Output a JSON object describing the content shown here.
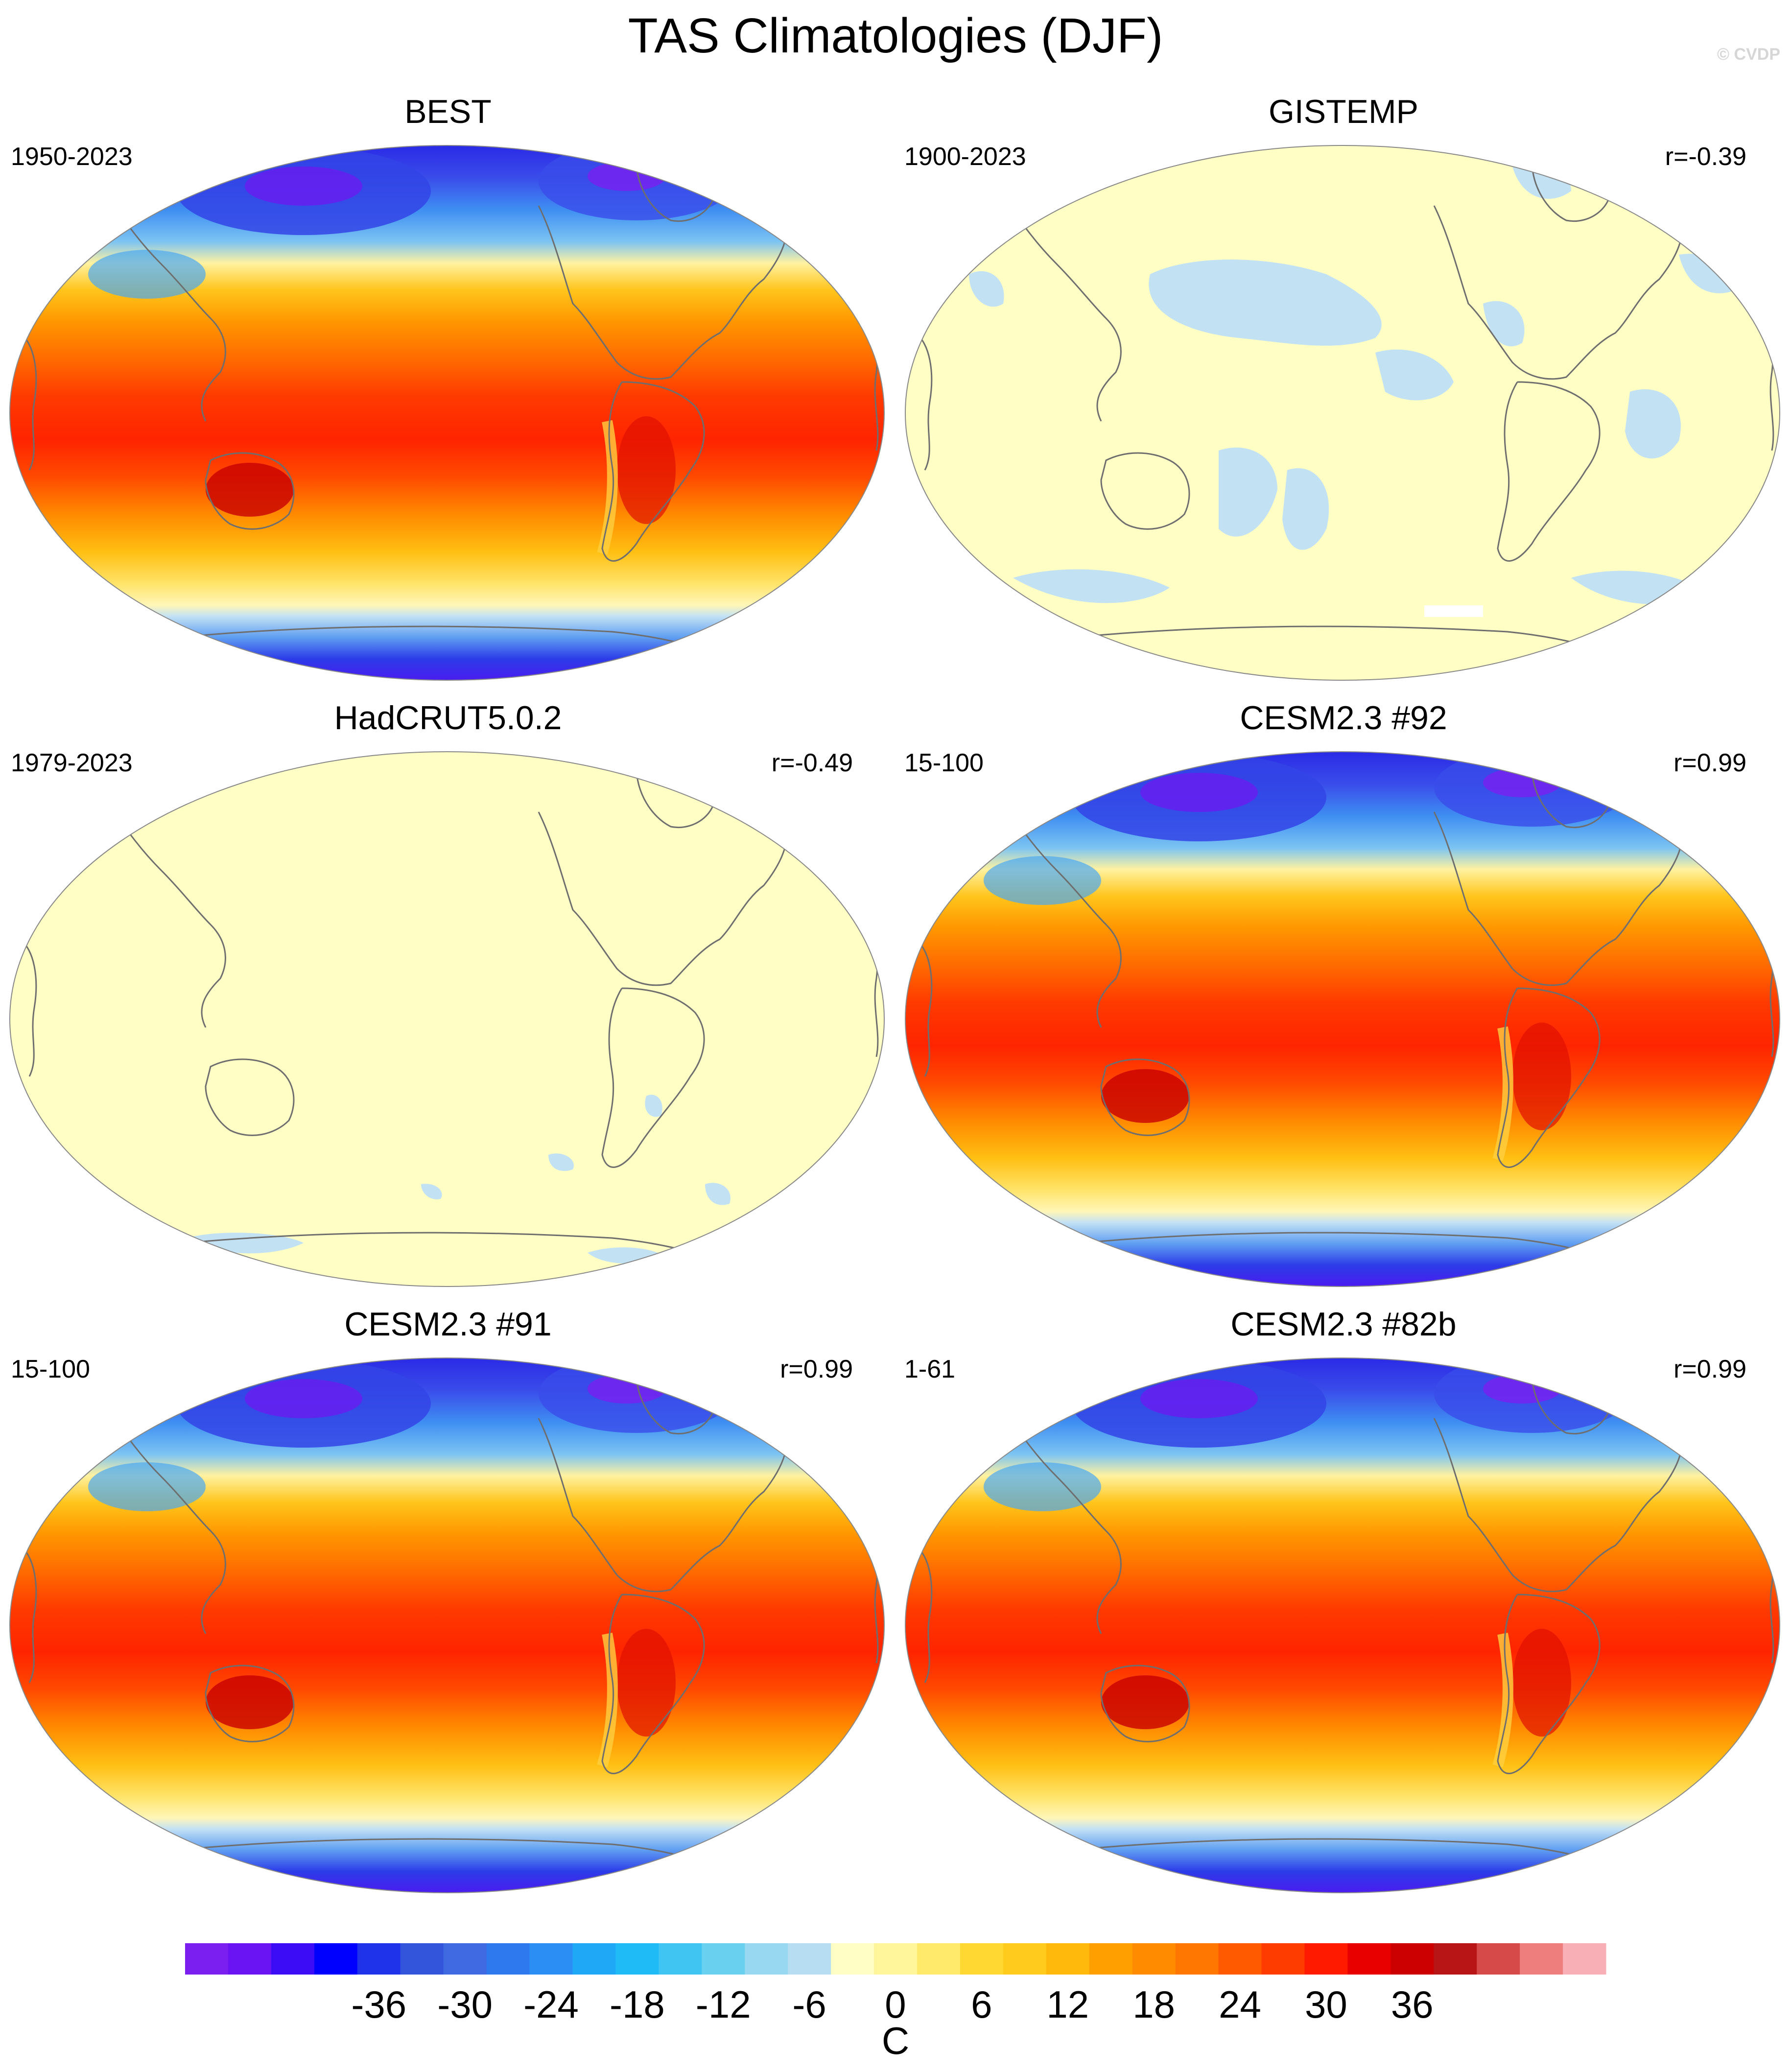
{
  "title": "TAS Climatologies (DJF)",
  "credit": "© CVDP",
  "panels": [
    {
      "name": "BEST",
      "period": "1950-2023",
      "r": "",
      "style": "full"
    },
    {
      "name": "GISTEMP",
      "period": "1900-2023",
      "r": "r=-0.39",
      "style": "gis"
    },
    {
      "name": "HadCRUT5.0.2",
      "period": "1979-2023",
      "r": "r=-0.49",
      "style": "had"
    },
    {
      "name": "CESM2.3 #92",
      "period": "15-100",
      "r": "r=0.99",
      "style": "full"
    },
    {
      "name": "CESM2.3 #91",
      "period": "15-100",
      "r": "r=0.99",
      "style": "full"
    },
    {
      "name": "CESM2.3 #82b",
      "period": "1-61",
      "r": "r=0.99",
      "style": "full"
    }
  ],
  "colorbar": {
    "unit": "C",
    "ticks": [
      "-36",
      "-30",
      "-24",
      "-18",
      "-12",
      "-6",
      "0",
      "6",
      "12",
      "18",
      "24",
      "30",
      "36"
    ],
    "colors": [
      "#7a1ff0",
      "#6a14f3",
      "#3d0cf6",
      "#0000ff",
      "#1f33ea",
      "#3355dc",
      "#3f6ae2",
      "#2f79ee",
      "#2a8ef5",
      "#1ea8f5",
      "#1fbbf7",
      "#40c4f2",
      "#6ad0ef",
      "#98d8f0",
      "#b7ddf3",
      "#fffec5",
      "#fff59a",
      "#ffea6c",
      "#ffd931",
      "#ffcb1d",
      "#ffb90c",
      "#ffa000",
      "#ff8c00",
      "#ff7700",
      "#ff5a00",
      "#ff3c00",
      "#ff1a00",
      "#e80000",
      "#cc0000",
      "#b81616",
      "#d74a4a",
      "#ee7e7e",
      "#f8b0b6"
    ]
  }
}
